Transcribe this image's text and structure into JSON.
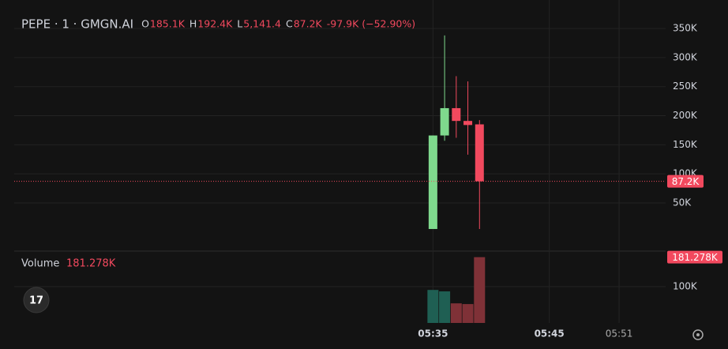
{
  "chart_data": {
    "type": "candlestick",
    "title": "PEPE · 1 · GMGN.AI",
    "legend": [
      {
        "key": "O",
        "label": "185.1K"
      },
      {
        "key": "H",
        "label": "192.4K"
      },
      {
        "key": "L",
        "label": "5,141.4"
      },
      {
        "key": "C",
        "label": "87.2K"
      }
    ],
    "change_label": "-97.9K (−52.90%)",
    "x": [
      "05:35",
      "05:36",
      "05:37",
      "05:38",
      "05:39"
    ],
    "open": [
      5141.4,
      166000,
      213000,
      191000,
      185100
    ],
    "high": [
      166000,
      338000,
      268000,
      259000,
      192400
    ],
    "low": [
      5141.4,
      157000,
      162000,
      133000,
      5141.4
    ],
    "close": [
      166000,
      213000,
      191000,
      184000,
      87200
    ],
    "up_color": "#7fd98d",
    "down_color": "#f2495e",
    "xlim": [
      "04:59",
      "05:55"
    ],
    "xticks": [
      "05:35",
      "05:45",
      "05:51"
    ],
    "ylim": [
      -31500,
      399000
    ],
    "yticks": [
      {
        "value": 50000,
        "label": "50K"
      },
      {
        "value": 100000,
        "label": "100K"
      },
      {
        "value": 150000,
        "label": "150K"
      },
      {
        "value": 200000,
        "label": "200K"
      },
      {
        "value": 250000,
        "label": "250K"
      },
      {
        "value": 300000,
        "label": "300K"
      },
      {
        "value": 350000,
        "label": "350K"
      }
    ],
    "last_price": {
      "value": 87200,
      "label": "87.2K"
    },
    "volume": {
      "name": "Volume",
      "label": "181.278K",
      "values": [
        91000,
        87000,
        54000,
        52000,
        181278
      ],
      "up_color": "#1f5f53",
      "down_color": "#7f3137",
      "ylim": [
        0,
        198000
      ],
      "yticks": [
        {
          "value": 100000,
          "label": "100K"
        }
      ]
    }
  }
}
